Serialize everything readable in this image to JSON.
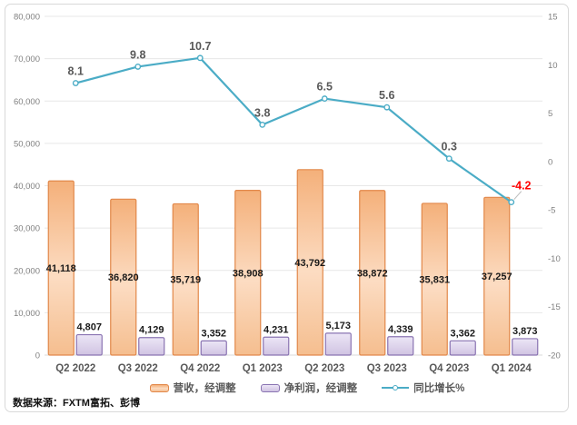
{
  "chart_data": {
    "type": "combo-bar-line",
    "title": "",
    "categories": [
      "Q2 2022",
      "Q3 2022",
      "Q4 2022",
      "Q1 2023",
      "Q2 2023",
      "Q3 2023",
      "Q4 2023",
      "Q1 2024"
    ],
    "series": [
      {
        "name": "营收，经调整",
        "type": "bar",
        "axis": "left",
        "values": [
          41118,
          36820,
          35719,
          38908,
          43792,
          38872,
          35831,
          37257
        ]
      },
      {
        "name": "净利润，经调整",
        "type": "bar",
        "axis": "left",
        "values": [
          4807,
          4129,
          3352,
          4231,
          5173,
          4339,
          3362,
          3873
        ]
      },
      {
        "name": "同比增长%",
        "type": "line",
        "axis": "right",
        "values": [
          8.1,
          9.8,
          10.7,
          3.8,
          6.5,
          5.6,
          0.3,
          -4.2
        ]
      }
    ],
    "left_axis": {
      "min": 0,
      "max": 80000,
      "step": 10000,
      "tick_labels": [
        "80,000",
        "70,000",
        "60,000",
        "50,000",
        "40,000",
        "30,000",
        "20,000",
        "10,000",
        "0"
      ]
    },
    "right_axis": {
      "min": -20,
      "max": 15,
      "step": 5,
      "tick_labels": [
        "15",
        "10",
        "5",
        "0",
        "-5",
        "-10",
        "-15",
        "-20"
      ]
    },
    "grid": true,
    "legend_position": "bottom"
  },
  "source_note": "数据来源：FXTM富拓、彭博",
  "colors": {
    "revenue_fill_top": "#F4B07A",
    "revenue_fill_mid": "#FCDCC2",
    "revenue_fill_bottom": "#F5BE8F",
    "revenue_border": "#E2884A",
    "profit_fill_top": "#ECE6F6",
    "profit_fill_bottom": "#D0C3E2",
    "profit_border": "#8A74B2",
    "line": "#4BACC6",
    "marker_fill": "#FFFFFF",
    "grid": "#E7E7E7",
    "axis_line": "#D8D8D8",
    "axis_text": "#808080",
    "category_text": "#595959",
    "bar_label": "#1A1A1A",
    "line_label": "#595959",
    "negative_label": "#FF0000",
    "leader": "#BFBFBF",
    "frame_border": "#D9D9D9"
  }
}
